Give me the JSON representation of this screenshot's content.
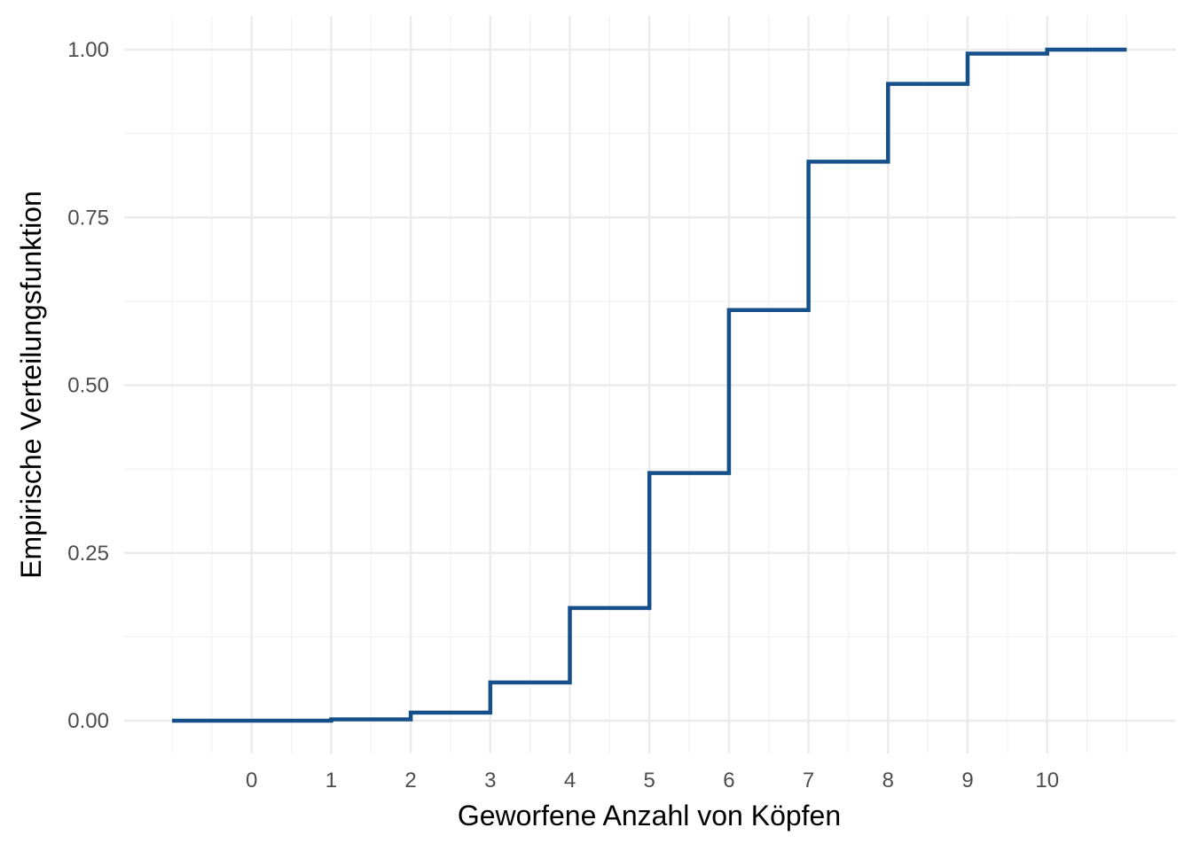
{
  "chart_data": {
    "type": "step",
    "xlabel": "Geworfene Anzahl von Köpfen",
    "ylabel": "Empirische Verteilungsfunktion",
    "x_ticks": [
      "0",
      "1",
      "2",
      "3",
      "4",
      "5",
      "6",
      "7",
      "8",
      "9",
      "10"
    ],
    "y_ticks": [
      "0.00",
      "0.25",
      "0.50",
      "0.75",
      "1.00"
    ],
    "xlim": [
      -1,
      11
    ],
    "ylim": [
      0,
      1
    ],
    "grid": true,
    "line_color": "#16508a",
    "series": [
      {
        "x": [
          -1,
          1,
          2,
          3,
          4,
          5,
          6,
          7,
          8,
          9,
          10,
          11
        ],
        "y": [
          0.0,
          0.002,
          0.012,
          0.057,
          0.168,
          0.369,
          0.612,
          0.833,
          0.949,
          0.994,
          1.0,
          1.0
        ]
      }
    ]
  }
}
